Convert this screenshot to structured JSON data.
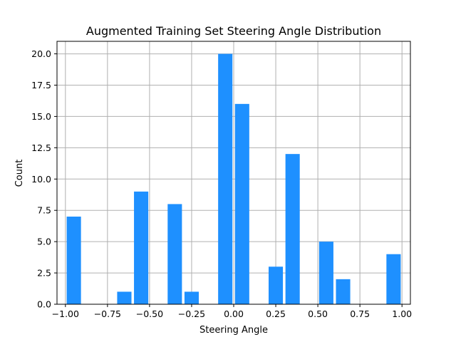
{
  "chart_data": {
    "type": "bar",
    "title": "Augmented Training Set Steering Angle Distribution",
    "xlabel": "Steering Angle",
    "ylabel": "Count",
    "bars": [
      {
        "x": -0.95,
        "value": 7
      },
      {
        "x": -0.65,
        "value": 1
      },
      {
        "x": -0.55,
        "value": 9
      },
      {
        "x": -0.35,
        "value": 8
      },
      {
        "x": -0.25,
        "value": 1
      },
      {
        "x": -0.05,
        "value": 20
      },
      {
        "x": 0.05,
        "value": 16
      },
      {
        "x": 0.25,
        "value": 3
      },
      {
        "x": 0.35,
        "value": 12
      },
      {
        "x": 0.55,
        "value": 5
      },
      {
        "x": 0.65,
        "value": 2
      },
      {
        "x": 0.95,
        "value": 4
      }
    ],
    "bin_width": 0.1,
    "xlim": [
      -1.05,
      1.05
    ],
    "ylim": [
      0,
      21
    ],
    "xticks": [
      -1.0,
      -0.75,
      -0.5,
      -0.25,
      0.0,
      0.25,
      0.5,
      0.75,
      1.0
    ],
    "xtick_labels": [
      "−1.00",
      "−0.75",
      "−0.50",
      "−0.25",
      "0.00",
      "0.25",
      "0.50",
      "0.75",
      "1.00"
    ],
    "yticks": [
      0,
      2.5,
      5,
      7.5,
      10,
      12.5,
      15,
      17.5,
      20
    ],
    "ytick_labels": [
      "0.0",
      "2.5",
      "5.0",
      "7.5",
      "10.0",
      "12.5",
      "15.0",
      "17.5",
      "20.0"
    ],
    "grid": true,
    "colors": {
      "bar": "#1e90ff",
      "grid": "#b0b0b0",
      "axis": "#000000"
    }
  }
}
